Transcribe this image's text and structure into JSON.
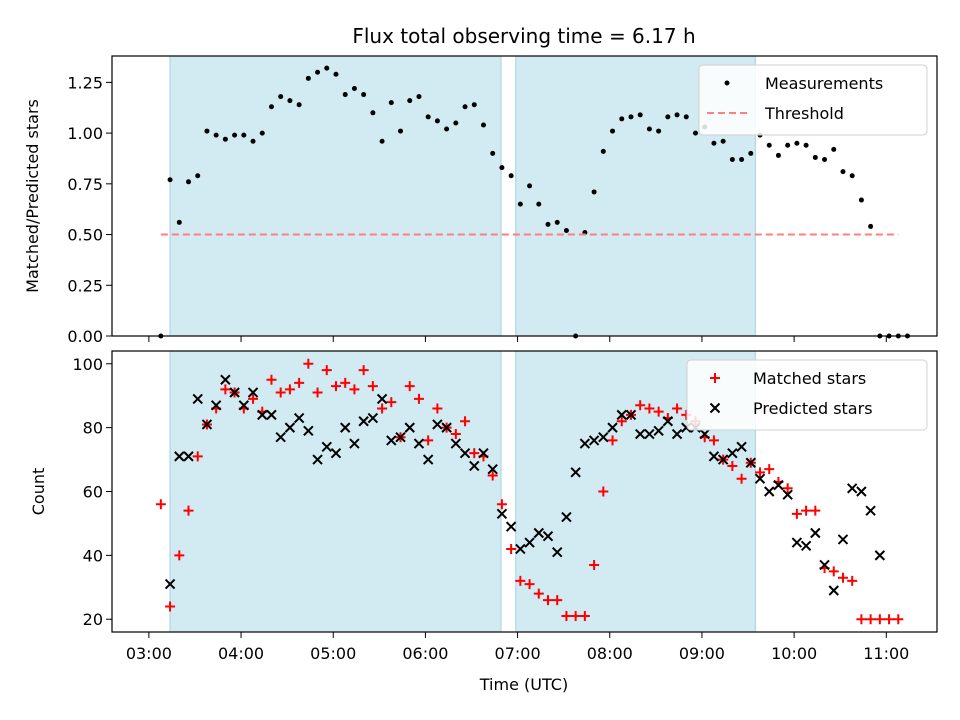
{
  "chart_data": {
    "type": "scatter",
    "title": "Flux total observing time = 6.17 h",
    "xlabel": "Time (UTC)",
    "x_ticks": [
      "03:00",
      "04:00",
      "05:00",
      "06:00",
      "07:00",
      "08:00",
      "09:00",
      "10:00",
      "11:00"
    ],
    "x_range_hours": [
      2.6,
      11.55
    ],
    "shaded_spans_hours": [
      [
        3.23,
        6.82
      ],
      [
        6.98,
        9.58
      ]
    ],
    "shade_color": "#add8e6",
    "panels": [
      {
        "ylabel": "Matched/Predicted stars",
        "ylim": [
          0,
          1.38
        ],
        "y_ticks": [
          "0.00",
          "0.25",
          "0.50",
          "0.75",
          "1.00",
          "1.25"
        ],
        "legend_position": "upper right",
        "series": [
          {
            "name": "Measurements",
            "kind": "dot",
            "color": "#000000",
            "points": [
              [
                3.13,
                0.0
              ],
              [
                3.23,
                0.77
              ],
              [
                3.33,
                0.56
              ],
              [
                3.43,
                0.76
              ],
              [
                3.53,
                0.79
              ],
              [
                3.63,
                1.01
              ],
              [
                3.73,
                0.99
              ],
              [
                3.83,
                0.97
              ],
              [
                3.93,
                0.99
              ],
              [
                4.03,
                0.99
              ],
              [
                4.13,
                0.96
              ],
              [
                4.23,
                1.0
              ],
              [
                4.33,
                1.13
              ],
              [
                4.43,
                1.18
              ],
              [
                4.53,
                1.16
              ],
              [
                4.63,
                1.14
              ],
              [
                4.73,
                1.27
              ],
              [
                4.83,
                1.3
              ],
              [
                4.93,
                1.32
              ],
              [
                5.03,
                1.29
              ],
              [
                5.13,
                1.19
              ],
              [
                5.23,
                1.22
              ],
              [
                5.33,
                1.19
              ],
              [
                5.43,
                1.1
              ],
              [
                5.53,
                0.96
              ],
              [
                5.63,
                1.15
              ],
              [
                5.73,
                1.01
              ],
              [
                5.83,
                1.16
              ],
              [
                5.93,
                1.18
              ],
              [
                6.03,
                1.08
              ],
              [
                6.13,
                1.06
              ],
              [
                6.23,
                1.02
              ],
              [
                6.33,
                1.05
              ],
              [
                6.43,
                1.13
              ],
              [
                6.53,
                1.14
              ],
              [
                6.63,
                1.04
              ],
              [
                6.73,
                0.9
              ],
              [
                6.83,
                0.83
              ],
              [
                6.93,
                0.79
              ],
              [
                7.03,
                0.65
              ],
              [
                7.13,
                0.74
              ],
              [
                7.23,
                0.65
              ],
              [
                7.33,
                0.55
              ],
              [
                7.43,
                0.56
              ],
              [
                7.53,
                0.52
              ],
              [
                7.63,
                0.0
              ],
              [
                7.73,
                0.51
              ],
              [
                7.83,
                0.71
              ],
              [
                7.93,
                0.91
              ],
              [
                8.03,
                1.01
              ],
              [
                8.13,
                1.07
              ],
              [
                8.23,
                1.08
              ],
              [
                8.33,
                1.09
              ],
              [
                8.43,
                1.02
              ],
              [
                8.53,
                1.01
              ],
              [
                8.63,
                1.08
              ],
              [
                8.73,
                1.09
              ],
              [
                8.83,
                1.08
              ],
              [
                8.93,
                1.0
              ],
              [
                9.03,
                1.03
              ],
              [
                9.13,
                0.95
              ],
              [
                9.23,
                0.96
              ],
              [
                9.33,
                0.87
              ],
              [
                9.43,
                0.87
              ],
              [
                9.53,
                0.9
              ],
              [
                9.63,
                0.99
              ],
              [
                9.73,
                0.94
              ],
              [
                9.83,
                0.89
              ],
              [
                9.93,
                0.94
              ],
              [
                10.03,
                0.95
              ],
              [
                10.13,
                0.94
              ],
              [
                10.23,
                0.88
              ],
              [
                10.33,
                0.87
              ],
              [
                10.43,
                0.92
              ],
              [
                10.53,
                0.81
              ],
              [
                10.63,
                0.79
              ],
              [
                10.73,
                0.67
              ],
              [
                10.83,
                0.54
              ],
              [
                10.93,
                0.0
              ],
              [
                11.03,
                0.0
              ],
              [
                11.13,
                0.0
              ],
              [
                11.23,
                0.0
              ]
            ]
          },
          {
            "name": "Threshold",
            "kind": "dashed-line",
            "color": "#ff7f7f",
            "x": [
              3.13,
              11.13
            ],
            "y": [
              0.5,
              0.5
            ]
          }
        ]
      },
      {
        "ylabel": "Count",
        "ylim": [
          16,
          104
        ],
        "y_ticks": [
          "20",
          "40",
          "60",
          "80",
          "100"
        ],
        "legend_position": "upper right",
        "series": [
          {
            "name": "Matched stars",
            "kind": "plus",
            "color": "#ff0000",
            "points": [
              [
                3.13,
                56
              ],
              [
                3.23,
                24
              ],
              [
                3.33,
                40
              ],
              [
                3.43,
                54
              ],
              [
                3.53,
                71
              ],
              [
                3.63,
                81
              ],
              [
                3.73,
                86
              ],
              [
                3.83,
                92
              ],
              [
                3.93,
                91
              ],
              [
                4.03,
                86
              ],
              [
                4.13,
                89
              ],
              [
                4.23,
                85
              ],
              [
                4.33,
                95
              ],
              [
                4.43,
                91
              ],
              [
                4.53,
                92
              ],
              [
                4.63,
                94
              ],
              [
                4.73,
                100
              ],
              [
                4.83,
                91
              ],
              [
                4.93,
                98
              ],
              [
                5.03,
                93
              ],
              [
                5.13,
                94
              ],
              [
                5.23,
                92
              ],
              [
                5.33,
                98
              ],
              [
                5.43,
                93
              ],
              [
                5.53,
                86
              ],
              [
                5.63,
                88
              ],
              [
                5.73,
                77
              ],
              [
                5.83,
                93
              ],
              [
                5.93,
                89
              ],
              [
                6.03,
                76
              ],
              [
                6.13,
                86
              ],
              [
                6.23,
                80
              ],
              [
                6.33,
                78
              ],
              [
                6.43,
                82
              ],
              [
                6.53,
                72
              ],
              [
                6.63,
                71
              ],
              [
                6.73,
                65
              ],
              [
                6.83,
                56
              ],
              [
                6.93,
                42
              ],
              [
                7.03,
                32
              ],
              [
                7.13,
                31
              ],
              [
                7.23,
                28
              ],
              [
                7.33,
                26
              ],
              [
                7.43,
                26
              ],
              [
                7.53,
                21
              ],
              [
                7.63,
                21
              ],
              [
                7.73,
                21
              ],
              [
                7.83,
                37
              ],
              [
                7.93,
                60
              ],
              [
                8.03,
                76
              ],
              [
                8.13,
                82
              ],
              [
                8.23,
                84
              ],
              [
                8.33,
                87
              ],
              [
                8.43,
                86
              ],
              [
                8.53,
                85
              ],
              [
                8.63,
                83
              ],
              [
                8.73,
                86
              ],
              [
                8.83,
                84
              ],
              [
                8.93,
                82
              ],
              [
                9.03,
                77
              ],
              [
                9.13,
                76
              ],
              [
                9.23,
                70
              ],
              [
                9.33,
                68
              ],
              [
                9.43,
                64
              ],
              [
                9.53,
                69
              ],
              [
                9.63,
                66
              ],
              [
                9.73,
                67
              ],
              [
                9.83,
                63
              ],
              [
                9.93,
                61
              ],
              [
                10.03,
                53
              ],
              [
                10.13,
                54
              ],
              [
                10.23,
                54
              ],
              [
                10.33,
                36
              ],
              [
                10.43,
                35
              ],
              [
                10.53,
                33
              ],
              [
                10.63,
                32
              ],
              [
                10.73,
                20
              ],
              [
                10.83,
                20
              ],
              [
                10.93,
                20
              ],
              [
                11.03,
                20
              ],
              [
                11.13,
                20
              ]
            ]
          },
          {
            "name": "Predicted stars",
            "kind": "cross",
            "color": "#000000",
            "points": [
              [
                3.23,
                31
              ],
              [
                3.33,
                71
              ],
              [
                3.43,
                71
              ],
              [
                3.53,
                89
              ],
              [
                3.63,
                81
              ],
              [
                3.73,
                87
              ],
              [
                3.83,
                95
              ],
              [
                3.93,
                91
              ],
              [
                4.03,
                87
              ],
              [
                4.13,
                91
              ],
              [
                4.23,
                84
              ],
              [
                4.33,
                84
              ],
              [
                4.43,
                77
              ],
              [
                4.53,
                80
              ],
              [
                4.63,
                83
              ],
              [
                4.73,
                79
              ],
              [
                4.83,
                70
              ],
              [
                4.93,
                74
              ],
              [
                5.03,
                72
              ],
              [
                5.13,
                80
              ],
              [
                5.23,
                75
              ],
              [
                5.33,
                82
              ],
              [
                5.43,
                83
              ],
              [
                5.53,
                89
              ],
              [
                5.63,
                76
              ],
              [
                5.73,
                77
              ],
              [
                5.83,
                80
              ],
              [
                5.93,
                75
              ],
              [
                6.03,
                70
              ],
              [
                6.13,
                81
              ],
              [
                6.23,
                80
              ],
              [
                6.33,
                75
              ],
              [
                6.43,
                72
              ],
              [
                6.53,
                68
              ],
              [
                6.63,
                72
              ],
              [
                6.73,
                67
              ],
              [
                6.83,
                53
              ],
              [
                6.93,
                49
              ],
              [
                7.03,
                42
              ],
              [
                7.13,
                44
              ],
              [
                7.23,
                47
              ],
              [
                7.33,
                46
              ],
              [
                7.43,
                41
              ],
              [
                7.53,
                52
              ],
              [
                7.63,
                66
              ],
              [
                7.73,
                75
              ],
              [
                7.83,
                76
              ],
              [
                7.93,
                77
              ],
              [
                8.03,
                80
              ],
              [
                8.13,
                84
              ],
              [
                8.23,
                84
              ],
              [
                8.33,
                78
              ],
              [
                8.43,
                78
              ],
              [
                8.53,
                79
              ],
              [
                8.63,
                82
              ],
              [
                8.73,
                78
              ],
              [
                8.83,
                80
              ],
              [
                8.93,
                80
              ],
              [
                9.03,
                78
              ],
              [
                9.13,
                71
              ],
              [
                9.23,
                70
              ],
              [
                9.33,
                72
              ],
              [
                9.43,
                74
              ],
              [
                9.53,
                69
              ],
              [
                9.63,
                64
              ],
              [
                9.73,
                60
              ],
              [
                9.83,
                62
              ],
              [
                9.93,
                59
              ],
              [
                10.03,
                44
              ],
              [
                10.13,
                43
              ],
              [
                10.23,
                47
              ],
              [
                10.33,
                37
              ],
              [
                10.43,
                29
              ],
              [
                10.53,
                45
              ],
              [
                10.63,
                61
              ],
              [
                10.73,
                60
              ],
              [
                10.83,
                54
              ],
              [
                10.93,
                40
              ]
            ]
          }
        ]
      }
    ]
  }
}
